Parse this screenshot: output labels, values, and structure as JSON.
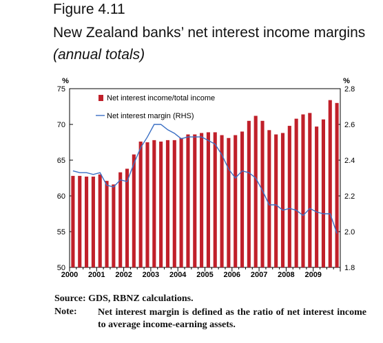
{
  "figure": {
    "label": "Figure 4.11",
    "title": "New Zealand banks’ net interest income margins",
    "subtitle": "(annual totals)"
  },
  "source": "Source: GDS, RBNZ calculations.",
  "note": {
    "label": "Note:",
    "text": "Net interest margin is defined as the ratio of net interest income to average income-earning assets."
  },
  "colors": {
    "bars": "#c0202a",
    "line": "#3a6fc4",
    "axis": "#000000"
  },
  "chart_data": {
    "type": "bar",
    "title": "",
    "xlabel": "",
    "left_axis": {
      "unit": "%",
      "ylim": [
        50,
        75
      ],
      "ticks": [
        "50",
        "55",
        "60",
        "65",
        "70",
        "75"
      ]
    },
    "right_axis": {
      "unit": "%",
      "ylim": [
        1.8,
        2.8
      ],
      "ticks": [
        "1.8",
        "2.0",
        "2.2",
        "2.4",
        "2.6",
        "2.8"
      ]
    },
    "x_tick_labels": [
      "2000",
      "2001",
      "2002",
      "2003",
      "2004",
      "2005",
      "2006",
      "2007",
      "2008",
      "2009"
    ],
    "grid": false,
    "legend_position": "top-left",
    "series": [
      {
        "name": "Net interest income/total income",
        "type": "bar",
        "axis": "left",
        "values": [
          62.8,
          62.8,
          62.7,
          62.7,
          63.0,
          62.1,
          61.6,
          63.3,
          63.8,
          65.8,
          67.6,
          67.5,
          67.8,
          67.6,
          67.8,
          67.8,
          68.1,
          68.6,
          68.6,
          68.8,
          68.9,
          68.9,
          68.5,
          68.1,
          68.5,
          69.0,
          70.5,
          71.2,
          70.5,
          69.2,
          68.6,
          68.8,
          69.8,
          70.8,
          71.4,
          71.6,
          69.7,
          70.7,
          73.4,
          73.0
        ]
      },
      {
        "name": "Net interest margin (RHS)",
        "type": "line",
        "axis": "right",
        "values": [
          2.34,
          2.33,
          2.33,
          2.32,
          2.33,
          2.26,
          2.25,
          2.29,
          2.28,
          2.38,
          2.47,
          2.53,
          2.6,
          2.6,
          2.57,
          2.55,
          2.52,
          2.53,
          2.53,
          2.53,
          2.51,
          2.49,
          2.43,
          2.35,
          2.3,
          2.34,
          2.33,
          2.3,
          2.23,
          2.15,
          2.15,
          2.12,
          2.13,
          2.12,
          2.09,
          2.13,
          2.11,
          2.1,
          2.1,
          1.99
        ]
      }
    ]
  }
}
